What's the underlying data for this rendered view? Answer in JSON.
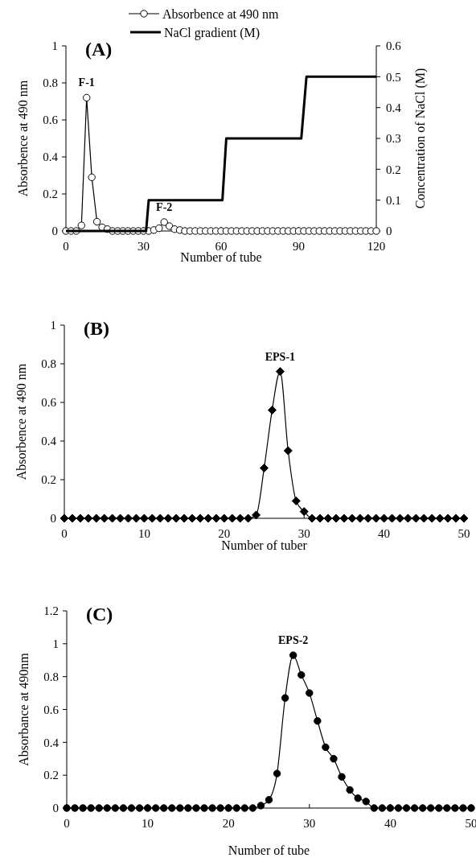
{
  "chart_data": [
    {
      "type": "line",
      "title": "(A)",
      "xlabel": "Number of tube",
      "ylabel": "Absorbence at 490 nm",
      "y2label": "Concentration of NaCl (M)",
      "xlim": [
        0,
        120
      ],
      "xticks": [
        0,
        30,
        60,
        90,
        120
      ],
      "ylim": [
        0,
        1
      ],
      "yticks": [
        0,
        0.2,
        0.4,
        0.6,
        0.8,
        1
      ],
      "y2lim": [
        0,
        0.6
      ],
      "y2ticks": [
        0,
        0.1,
        0.2,
        0.3,
        0.4,
        0.5,
        0.6
      ],
      "legend": "top",
      "grid": false,
      "annotations": [
        {
          "text": "F-1",
          "x": 8,
          "y": 0.72
        },
        {
          "text": "F-2",
          "x": 38,
          "y": 0.048
        }
      ],
      "series": [
        {
          "name": "Absorbence at 490 nm",
          "color": "#000000",
          "marker": "circle",
          "x": [
            0,
            2,
            4,
            6,
            8,
            10,
            12,
            14,
            16,
            18,
            20,
            22,
            24,
            26,
            28,
            30,
            32,
            34,
            36,
            38,
            40,
            42,
            44,
            46,
            48,
            50,
            52,
            54,
            56,
            58,
            60,
            62,
            64,
            66,
            68,
            70,
            72,
            74,
            76,
            78,
            80,
            82,
            84,
            86,
            88,
            90,
            92,
            94,
            96,
            98,
            100,
            102,
            104,
            106,
            108,
            110,
            112,
            114,
            116,
            118,
            120
          ],
          "values": [
            0,
            0,
            0,
            0.03,
            0.72,
            0.29,
            0.05,
            0.02,
            0.01,
            0,
            0,
            0,
            0,
            0,
            0,
            0,
            0,
            0.005,
            0.015,
            0.048,
            0.026,
            0.01,
            0.005,
            0,
            0,
            0,
            0,
            0,
            0,
            0,
            0,
            0,
            0,
            0,
            0,
            0,
            0,
            0,
            0,
            0,
            0,
            0,
            0,
            0,
            0,
            0,
            0,
            0,
            0,
            0,
            0,
            0,
            0,
            0,
            0,
            0,
            0,
            0,
            0,
            0,
            0
          ]
        },
        {
          "name": "NaCl gradient (M)",
          "color": "#000000",
          "marker": "none",
          "axis": "y2",
          "x": [
            0,
            31,
            32,
            60.5,
            62,
            91,
            93,
            120
          ],
          "values": [
            0,
            0,
            0.1,
            0.1,
            0.3,
            0.3,
            0.5,
            0.5
          ]
        }
      ]
    },
    {
      "type": "line",
      "title": "(B)",
      "xlabel": "Number of tuber",
      "ylabel": "Absorbence at 490 nm",
      "xlim": [
        0,
        50
      ],
      "xticks": [
        0,
        10,
        20,
        30,
        40,
        50
      ],
      "ylim": [
        0,
        1
      ],
      "yticks": [
        0,
        0.2,
        0.4,
        0.6,
        0.8,
        1
      ],
      "grid": false,
      "annotations": [
        {
          "text": "EPS-1",
          "x": 27,
          "y": 0.76
        }
      ],
      "series": [
        {
          "color": "#000000",
          "marker": "diamond",
          "x": [
            0,
            1,
            2,
            3,
            4,
            5,
            6,
            7,
            8,
            9,
            10,
            11,
            12,
            13,
            14,
            15,
            16,
            17,
            18,
            19,
            20,
            21,
            22,
            23,
            24,
            25,
            26,
            27,
            28,
            29,
            30,
            31,
            32,
            33,
            34,
            35,
            36,
            37,
            38,
            39,
            40,
            41,
            42,
            43,
            44,
            45,
            46,
            47,
            48,
            49,
            50
          ],
          "values": [
            0,
            0,
            0,
            0,
            0,
            0,
            0,
            0,
            0,
            0,
            0,
            0,
            0,
            0,
            0,
            0,
            0,
            0,
            0,
            0,
            0,
            0,
            0,
            0,
            0.017,
            0.26,
            0.56,
            0.76,
            0.35,
            0.09,
            0.035,
            0,
            0,
            0,
            0,
            0,
            0,
            0,
            0,
            0,
            0,
            0,
            0,
            0,
            0,
            0,
            0,
            0,
            0,
            0,
            0
          ]
        }
      ]
    },
    {
      "type": "line",
      "title": "(C)",
      "xlabel": "Number of tube",
      "ylabel": "Absorbance at 490nm",
      "xlim": [
        0,
        50
      ],
      "xticks": [
        0,
        10,
        20,
        30,
        40,
        50
      ],
      "ylim": [
        0,
        1.2
      ],
      "yticks": [
        0,
        0.2,
        0.4,
        0.6,
        0.8,
        1,
        1.2
      ],
      "grid": false,
      "annotations": [
        {
          "text": "EPS-2",
          "x": 28,
          "y": 0.93
        }
      ],
      "series": [
        {
          "color": "#000000",
          "marker": "circle",
          "x": [
            0,
            1,
            2,
            3,
            4,
            5,
            6,
            7,
            8,
            9,
            10,
            11,
            12,
            13,
            14,
            15,
            16,
            17,
            18,
            19,
            20,
            21,
            22,
            23,
            24,
            25,
            26,
            27,
            28,
            29,
            30,
            31,
            32,
            33,
            34,
            35,
            36,
            37,
            38,
            39,
            40,
            41,
            42,
            43,
            44,
            45,
            46,
            47,
            48,
            49,
            50
          ],
          "values": [
            0,
            0,
            0,
            0,
            0,
            0,
            0,
            0,
            0,
            0,
            0,
            0,
            0,
            0,
            0,
            0,
            0,
            0,
            0,
            0,
            0,
            0,
            0,
            0,
            0.015,
            0.05,
            0.21,
            0.67,
            0.93,
            0.81,
            0.7,
            0.53,
            0.37,
            0.3,
            0.19,
            0.11,
            0.06,
            0.04,
            0,
            0,
            0,
            0,
            0,
            0,
            0,
            0,
            0,
            0,
            0,
            0,
            0
          ]
        }
      ]
    }
  ]
}
